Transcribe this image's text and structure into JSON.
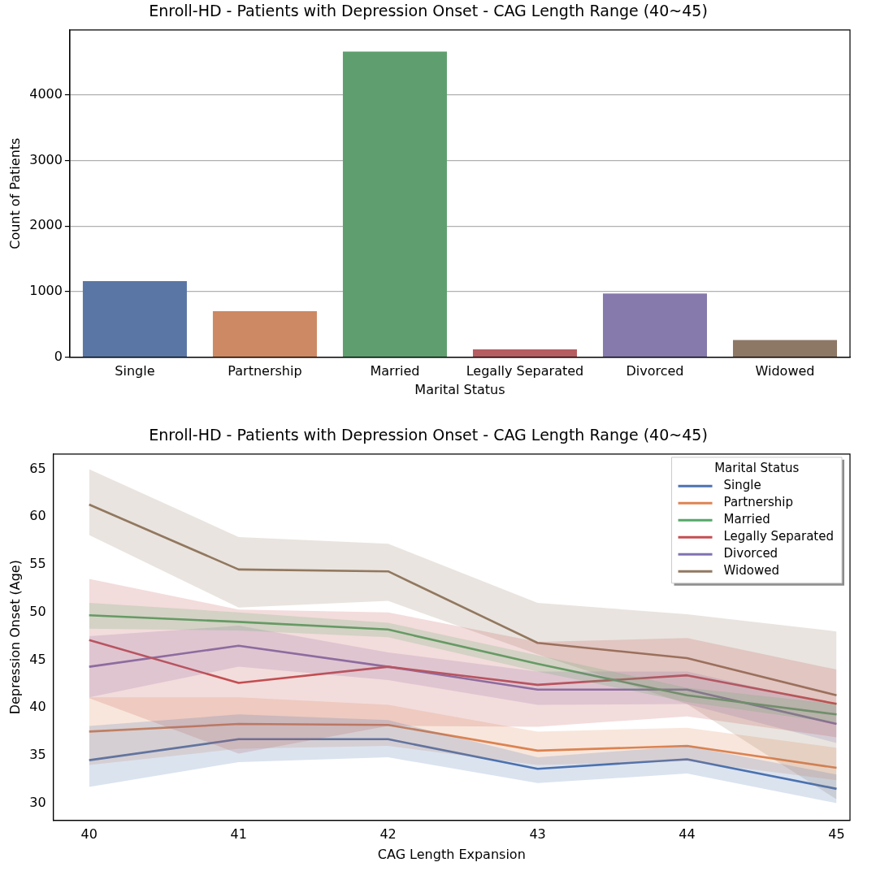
{
  "chart_data": [
    {
      "type": "bar",
      "title": "Enroll-HD - Patients with Depression Onset - CAG Length Range (40~45)",
      "xlabel": "Marital Status",
      "ylabel": "Count of Patients",
      "categories": [
        "Single",
        "Partnership",
        "Married",
        "Legally Separated",
        "Divorced",
        "Widowed"
      ],
      "values": [
        1160,
        700,
        4660,
        120,
        970,
        260
      ],
      "colors": [
        "#5a76a4",
        "#cc8963",
        "#5f9e6e",
        "#b55d60",
        "#857aab",
        "#8d7866"
      ],
      "ylim": [
        0,
        4990
      ],
      "yticks": [
        0,
        1000,
        2000,
        3000,
        4000
      ],
      "grid": "y"
    },
    {
      "type": "line",
      "title": "Enroll-HD - Patients with Depression Onset - CAG Length Range (40~45)",
      "xlabel": "CAG Length Expansion",
      "ylabel": "Depression Onset (Age)",
      "legend_title": "Marital Status",
      "legend": "top right",
      "x": [
        40,
        41,
        42,
        43,
        44,
        45
      ],
      "xlim": [
        39.76,
        45.09
      ],
      "xticks": [
        40,
        41,
        42,
        43,
        44,
        45
      ],
      "ylim": [
        28.2,
        66.6
      ],
      "yticks": [
        30,
        35,
        40,
        45,
        50,
        55,
        60,
        65
      ],
      "series": [
        {
          "name": "Single",
          "color": "#4c72b0",
          "values": [
            34.5,
            36.7,
            36.7,
            33.6,
            34.6,
            31.5
          ],
          "lower": [
            31.7,
            34.3,
            34.8,
            32.1,
            33.1,
            30.0
          ],
          "upper": [
            38.1,
            39.3,
            38.7,
            34.8,
            36.0,
            33.0
          ]
        },
        {
          "name": "Partnership",
          "color": "#dd8452",
          "values": [
            37.5,
            38.3,
            38.2,
            35.5,
            36.0,
            33.7
          ],
          "lower": [
            34.0,
            35.7,
            36.0,
            34.0,
            34.4,
            32.4
          ],
          "upper": [
            41.1,
            41.1,
            40.3,
            37.5,
            37.9,
            35.8
          ]
        },
        {
          "name": "Married",
          "color": "#55a868",
          "values": [
            49.7,
            49.0,
            48.2,
            44.6,
            41.3,
            39.3
          ],
          "lower": [
            48.3,
            48.1,
            47.4,
            43.8,
            40.6,
            38.4
          ],
          "upper": [
            51.0,
            50.0,
            48.9,
            45.5,
            42.1,
            40.4
          ]
        },
        {
          "name": "Legally Separated",
          "color": "#c44e52",
          "values": [
            47.1,
            42.6,
            44.3,
            42.4,
            43.4,
            40.4
          ],
          "lower": [
            41.0,
            35.2,
            38.1,
            38.0,
            39.1,
            36.9
          ],
          "upper": [
            53.5,
            50.3,
            50.0,
            46.9,
            47.3,
            44.0
          ]
        },
        {
          "name": "Divorced",
          "color": "#8172b3",
          "values": [
            44.3,
            46.5,
            44.3,
            41.9,
            41.9,
            38.3
          ],
          "lower": [
            41.1,
            44.3,
            42.9,
            40.3,
            40.4,
            36.3
          ],
          "upper": [
            47.5,
            48.6,
            45.8,
            43.8,
            43.8,
            40.2
          ]
        },
        {
          "name": "Widowed",
          "color": "#937860",
          "values": [
            61.3,
            54.5,
            54.3,
            46.8,
            45.2,
            41.3
          ],
          "lower": [
            58.1,
            50.5,
            51.2,
            45.6,
            40.4,
            30.4
          ],
          "upper": [
            65.0,
            57.9,
            57.2,
            51.0,
            49.8,
            48.0
          ]
        }
      ]
    }
  ]
}
